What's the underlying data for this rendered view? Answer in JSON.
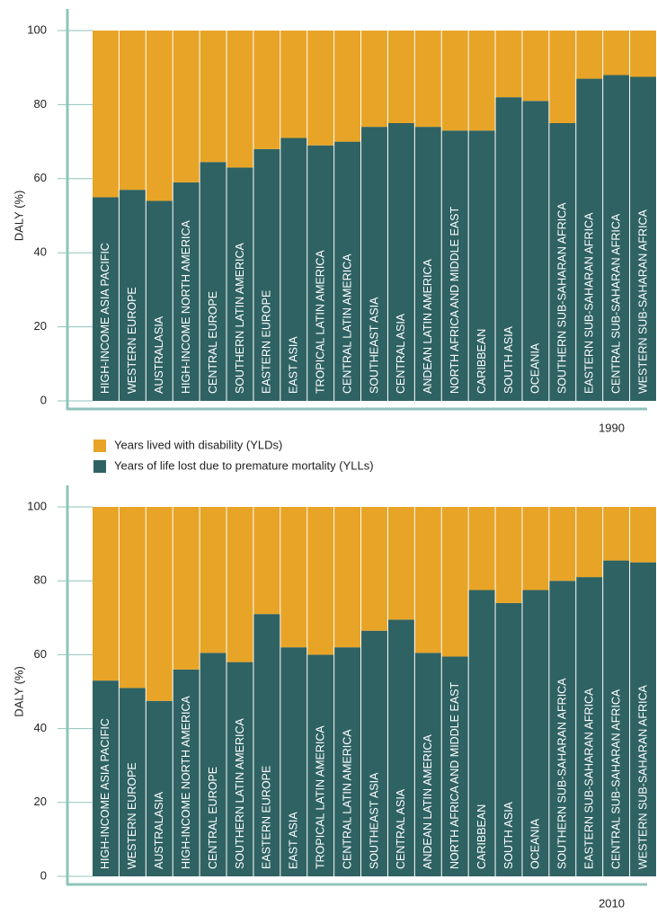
{
  "chart_data": [
    {
      "type": "bar",
      "stacked": true,
      "ylabel": "DALY (%)",
      "annotation": "1990",
      "categories": [
        "HIGH-INCOME ASIA PACIFIC",
        "WESTERN EUROPE",
        "AUSTRALASIA",
        "HIGH-INCOME NORTH AMERICA",
        "CENTRAL EUROPE",
        "SOUTHERN LATIN AMERICA",
        "EASTERN EUROPE",
        "EAST ASIA",
        "TROPICAL LATIN AMERICA",
        "CENTRAL LATIN AMERICA",
        "SOUTHEAST ASIA",
        "CENTRAL ASIA",
        "ANDEAN LATIN AMERICA",
        "NORTH AFRICA AND MIDDLE EAST",
        "CARIBBEAN",
        "SOUTH ASIA",
        "OCEANIA",
        "SOUTHERN SUB-SAHARAN AFRICA",
        "EASTERN SUB-SAHARAN AFRICA",
        "CENTRAL SUB-SAHARAN AFRICA",
        "WESTERN SUB-SAHARAN AFRICA"
      ],
      "series": [
        {
          "name": "Years of life lost due to premature mortality (YLLs)",
          "color": "#2f6263",
          "values": [
            55,
            57,
            54,
            59,
            64.5,
            63,
            68,
            71,
            69,
            70,
            74,
            75,
            74,
            73,
            73,
            82,
            81,
            75,
            87,
            88,
            87.5
          ]
        },
        {
          "name": "Years lived with disability (YLDs)",
          "color": "#e8a427",
          "values": [
            45,
            43,
            46,
            41,
            35.5,
            37,
            32,
            29,
            31,
            30,
            26,
            25,
            26,
            27,
            27,
            18,
            19,
            25,
            13,
            12,
            12.5
          ]
        }
      ],
      "ylim": [
        0,
        100
      ],
      "yticks": [
        0,
        20,
        40,
        60,
        80,
        100
      ]
    },
    {
      "type": "bar",
      "stacked": true,
      "ylabel": "DALY (%)",
      "annotation": "2010",
      "categories": [
        "HIGH-INCOME ASIA PACIFIC",
        "WESTERN EUROPE",
        "AUSTRALASIA",
        "HIGH-INCOME NORTH AMERICA",
        "CENTRAL EUROPE",
        "SOUTHERN LATIN AMERICA",
        "EASTERN EUROPE",
        "EAST ASIA",
        "TROPICAL LATIN AMERICA",
        "CENTRAL LATIN AMERICA",
        "SOUTHEAST ASIA",
        "CENTRAL ASIA",
        "ANDEAN LATIN AMERICA",
        "NORTH AFRICA AND MIDDLE EAST",
        "CARIBBEAN",
        "SOUTH ASIA",
        "OCEANIA",
        "SOUTHERN SUB-SAHARAN AFRICA",
        "EASTERN SUB-SAHARAN AFRICA",
        "CENTRAL SUB-SAHARAN AFRICA",
        "WESTERN SUB-SAHARAN AFRICA"
      ],
      "series": [
        {
          "color": "#2f6263",
          "values": [
            53,
            51,
            47.5,
            56,
            60.5,
            58,
            71,
            62,
            60,
            62,
            66.5,
            69.5,
            60.5,
            59.5,
            77.5,
            74,
            77.5,
            80,
            81,
            85.5,
            85
          ]
        },
        {
          "color": "#e8a427",
          "values": [
            47,
            49,
            52.5,
            44,
            39.5,
            42,
            29,
            38,
            40,
            38,
            33.5,
            30.5,
            39.5,
            40.5,
            22.5,
            26,
            22.5,
            20,
            19,
            14.5,
            15
          ]
        }
      ],
      "ylim": [
        0,
        100
      ],
      "yticks": [
        0,
        20,
        40,
        60,
        80,
        100
      ]
    }
  ]
}
